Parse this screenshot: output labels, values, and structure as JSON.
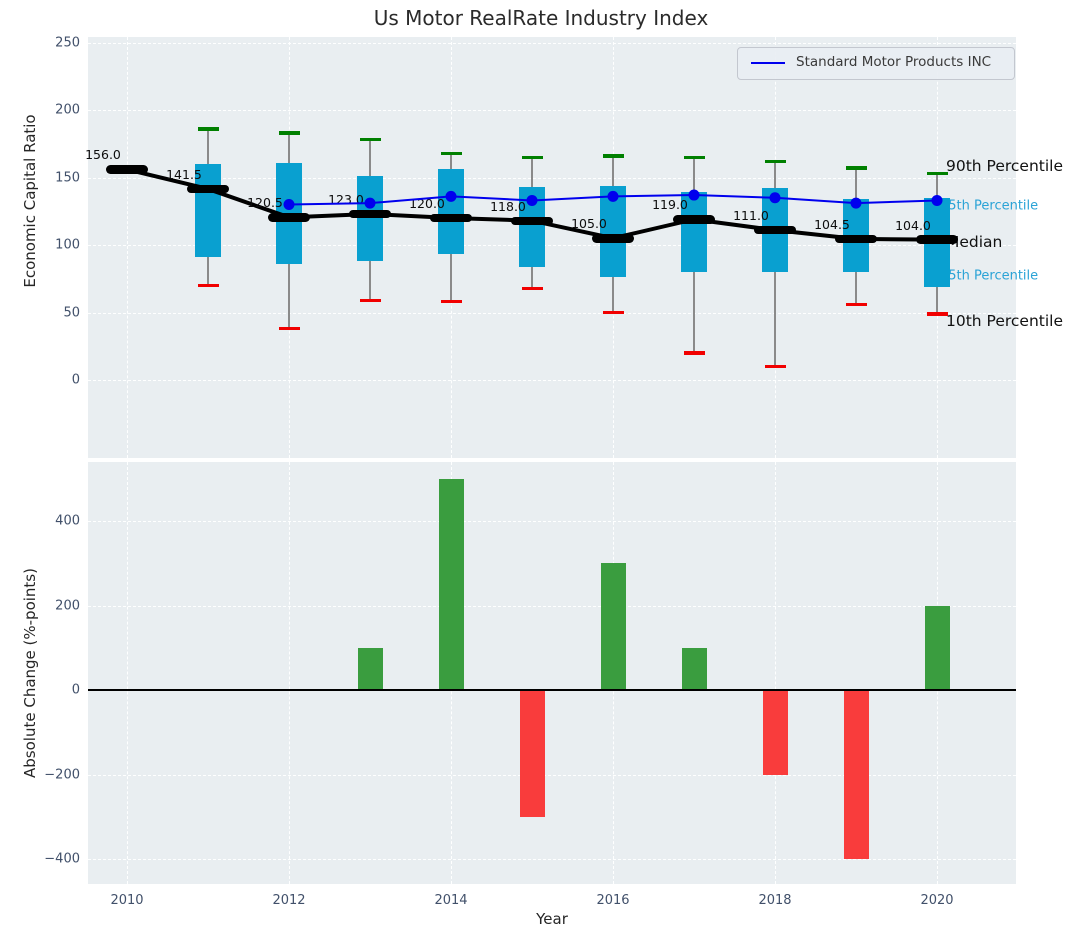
{
  "title": "Us Motor RealRate Industry Index",
  "colors": {
    "plot_background": "#e9eef1",
    "box_fill": "#09a0d0",
    "median_black": "#000000",
    "company_blue": "#0000ee",
    "whisker_gray": "#8a8a8a",
    "cap_90th_green": "#008000",
    "cap_10th_red": "#f10000",
    "bar_positive_green": "#3a9d3f",
    "bar_negative_red": "#f93c3c",
    "annotation_cyan": "#2aa3d6",
    "tick_label": "#41506a"
  },
  "chart_data": [
    {
      "type": "boxplot",
      "title": "Us Motor RealRate Industry Index",
      "ylabel": "Economic Capital Ratio",
      "ylim": [
        -58,
        254
      ],
      "yticks": [
        250,
        200,
        150,
        100,
        50,
        0
      ],
      "grid": true,
      "legend": {
        "position": "upper right",
        "entries": [
          "Standard Motor Products INC"
        ]
      },
      "boxes": [
        {
          "year": 2010,
          "median": 156.0,
          "label": "156.0"
        },
        {
          "year": 2011,
          "median": 141.5,
          "label": "141.5",
          "p10": 70,
          "p25": 91,
          "p75": 160,
          "p90": 186
        },
        {
          "year": 2012,
          "median": 120.5,
          "label": "120.5",
          "p10": 38,
          "p25": 86,
          "p75": 161,
          "p90": 183
        },
        {
          "year": 2013,
          "median": 123.0,
          "label": "123.0",
          "p10": 59,
          "p25": 88,
          "p75": 151,
          "p90": 178
        },
        {
          "year": 2014,
          "median": 120.0,
          "label": "120.0",
          "p10": 58,
          "p25": 93,
          "p75": 156,
          "p90": 168
        },
        {
          "year": 2015,
          "median": 118.0,
          "label": "118.0",
          "p10": 68,
          "p25": 84,
          "p75": 143,
          "p90": 165
        },
        {
          "year": 2016,
          "median": 105.0,
          "label": "105.0",
          "p10": 50,
          "p25": 76,
          "p75": 144,
          "p90": 166
        },
        {
          "year": 2017,
          "median": 119.0,
          "label": "119.0",
          "p10": 20,
          "p25": 80,
          "p75": 139,
          "p90": 165
        },
        {
          "year": 2018,
          "median": 111.0,
          "label": "111.0",
          "p10": 10,
          "p25": 80,
          "p75": 142,
          "p90": 162
        },
        {
          "year": 2019,
          "median": 104.5,
          "label": "104.5",
          "p10": 56,
          "p25": 80,
          "p75": 134,
          "p90": 157
        },
        {
          "year": 2020,
          "median": 104.0,
          "label": "104.0",
          "p10": 49,
          "p25": 69,
          "p75": 135,
          "p90": 153
        }
      ],
      "company_series": {
        "name": "Standard Motor Products INC",
        "years": [
          2012,
          2013,
          2014,
          2015,
          2016,
          2017,
          2018,
          2019,
          2020
        ],
        "values": [
          130,
          131,
          136,
          133,
          136,
          137,
          135,
          131,
          133
        ]
      },
      "annotations": [
        {
          "text": "90th Percentile",
          "value": 158.5,
          "style": "black-large"
        },
        {
          "text": "75th Percentile",
          "value": 129,
          "style": "cyan-small"
        },
        {
          "text": "Median",
          "value": 102,
          "style": "black-large"
        },
        {
          "text": "25th Percentile",
          "value": 77,
          "style": "cyan-small"
        },
        {
          "text": "10th Percentile",
          "value": 44,
          "style": "black-large"
        }
      ]
    },
    {
      "type": "bar",
      "ylabel": "Absolute Change (%-points)",
      "xlabel": "Year",
      "ylim": [
        -460,
        540
      ],
      "yticks": [
        400,
        200,
        0,
        -200,
        -400
      ],
      "xticks": [
        2010,
        2012,
        2014,
        2016,
        2018,
        2020
      ],
      "categories": [
        2013,
        2014,
        2015,
        2016,
        2017,
        2018,
        2019,
        2020
      ],
      "values": [
        100,
        500,
        -300,
        300,
        100,
        -200,
        -400,
        200
      ]
    }
  ]
}
